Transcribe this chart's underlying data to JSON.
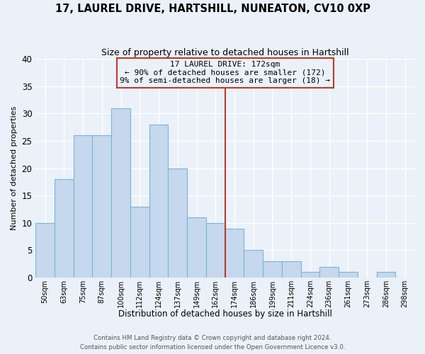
{
  "title": "17, LAUREL DRIVE, HARTSHILL, NUNEATON, CV10 0XP",
  "subtitle": "Size of property relative to detached houses in Hartshill",
  "xlabel": "Distribution of detached houses by size in Hartshill",
  "ylabel": "Number of detached properties",
  "bar_color": "#c5d8ed",
  "bar_edge_color": "#7ab4d8",
  "bin_labels": [
    "50sqm",
    "63sqm",
    "75sqm",
    "87sqm",
    "100sqm",
    "112sqm",
    "124sqm",
    "137sqm",
    "149sqm",
    "162sqm",
    "174sqm",
    "186sqm",
    "199sqm",
    "211sqm",
    "224sqm",
    "236sqm",
    "261sqm",
    "273sqm",
    "286sqm",
    "298sqm"
  ],
  "bar_heights": [
    10,
    18,
    26,
    26,
    31,
    13,
    28,
    20,
    11,
    10,
    9,
    5,
    3,
    3,
    1,
    2,
    1,
    0,
    1,
    0
  ],
  "vline_color": "#c0392b",
  "annotation_title": "17 LAUREL DRIVE: 172sqm",
  "annotation_line1": "← 90% of detached houses are smaller (172)",
  "annotation_line2": "9% of semi-detached houses are larger (18) →",
  "annotation_box_color": "#c0392b",
  "ylim": [
    0,
    40
  ],
  "yticks": [
    0,
    5,
    10,
    15,
    20,
    25,
    30,
    35,
    40
  ],
  "footer1": "Contains HM Land Registry data © Crown copyright and database right 2024.",
  "footer2": "Contains public sector information licensed under the Open Government Licence v3.0.",
  "background_color": "#eaf1f8",
  "grid_color": "#dde8f3"
}
